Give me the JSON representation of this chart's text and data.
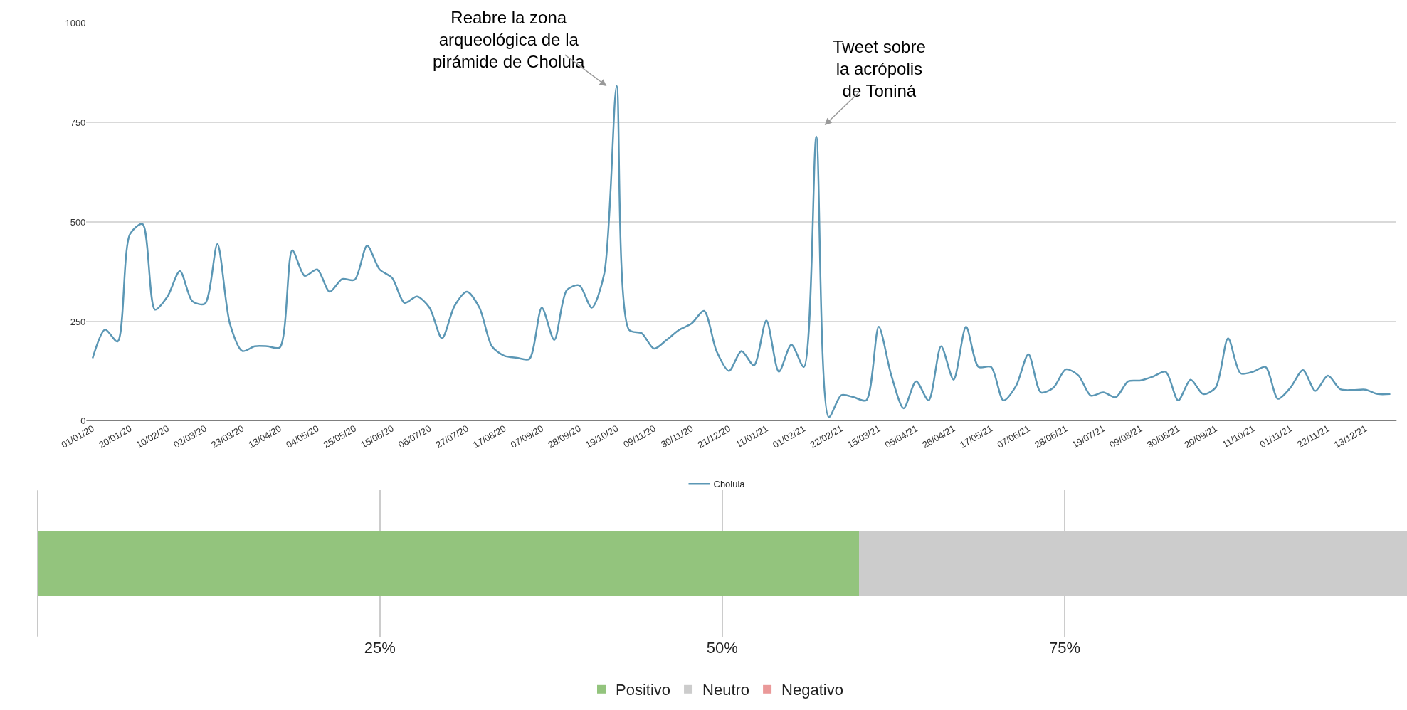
{
  "chart_data": [
    {
      "type": "line",
      "categories": [
        "01/01/20",
        null,
        null,
        "20/01/20",
        null,
        null,
        "10/02/20",
        null,
        null,
        "02/03/20",
        null,
        null,
        "23/03/20",
        null,
        null,
        "13/04/20",
        null,
        null,
        "04/05/20",
        null,
        null,
        "25/05/20",
        null,
        null,
        "15/06/20",
        null,
        null,
        "06/07/20",
        null,
        null,
        "27/07/20",
        null,
        null,
        "17/08/20",
        null,
        null,
        "07/09/20",
        null,
        null,
        "28/09/20",
        null,
        null,
        "19/10/20",
        null,
        null,
        "09/11/20",
        null,
        null,
        "30/11/20",
        null,
        null,
        "21/12/20",
        null,
        null,
        "11/01/21",
        null,
        null,
        "01/02/21",
        null,
        null,
        "22/02/21",
        null,
        null,
        "15/03/21",
        null,
        null,
        "05/04/21",
        null,
        null,
        "26/04/21",
        null,
        null,
        "17/05/21",
        null,
        null,
        "07/06/21",
        null,
        null,
        "28/06/21",
        null,
        null,
        "19/07/21",
        null,
        null,
        "09/08/21",
        null,
        null,
        "30/08/21",
        null,
        null,
        "20/09/21",
        null,
        null,
        "11/10/21",
        null,
        null,
        "01/11/21",
        null,
        null,
        "22/11/21",
        null,
        null,
        "13/12/21",
        null,
        null
      ],
      "series": [
        {
          "name": "Cholula",
          "color": "#5b97b5",
          "values": [
            158,
            230,
            200,
            470,
            495,
            280,
            313,
            377,
            301,
            295,
            445,
            245,
            176,
            188,
            188,
            185,
            429,
            365,
            381,
            325,
            357,
            355,
            441,
            381,
            360,
            297,
            313,
            285,
            208,
            289,
            325,
            285,
            188,
            164,
            159,
            156,
            285,
            204,
            329,
            341,
            285,
            370,
            842,
            229,
            221,
            182,
            204,
            229,
            245,
            277,
            176,
            126,
            176,
            140,
            253,
            124,
            192,
            136,
            715,
            10,
            65,
            60,
            52,
            237,
            116,
            32,
            100,
            52,
            188,
            104,
            237,
            136,
            136,
            52,
            88,
            168,
            72,
            84,
            130,
            115,
            64,
            72,
            60,
            100,
            102,
            112,
            124,
            52,
            104,
            68,
            84,
            208,
            120,
            124,
            136,
            56,
            84,
            128,
            76,
            114,
            80,
            78,
            79,
            68,
            68
          ]
        }
      ],
      "ylim": [
        0,
        1000
      ],
      "yticks": [
        0,
        250,
        500,
        750,
        1000
      ],
      "grid": "y",
      "legend": "bottom",
      "annotations": [
        "Reabre la zona\narqueológica de la\npirámide de Cholula",
        "Tweet sobre\nla acrópolis\nde Toniná"
      ]
    },
    {
      "type": "bar",
      "orientation": "horizontal",
      "stacked": true,
      "categories": [
        null
      ],
      "series": [
        {
          "name": "Positivo",
          "color": "#93c47d",
          "values": [
            60
          ]
        },
        {
          "name": "Neutro",
          "color": "#cccccc",
          "values": [
            40
          ]
        },
        {
          "name": "Negativo",
          "color": "#ea9999",
          "values": [
            0
          ]
        }
      ],
      "xlim": [
        0,
        100
      ],
      "xticks": [
        {
          "value": 0,
          "label": null
        },
        {
          "value": 25,
          "label": "25%"
        },
        {
          "value": 50,
          "label": "50%"
        },
        {
          "value": 75,
          "label": "75%"
        }
      ],
      "grid": "x",
      "legend": "bottom",
      "tick_labels": "x"
    }
  ]
}
